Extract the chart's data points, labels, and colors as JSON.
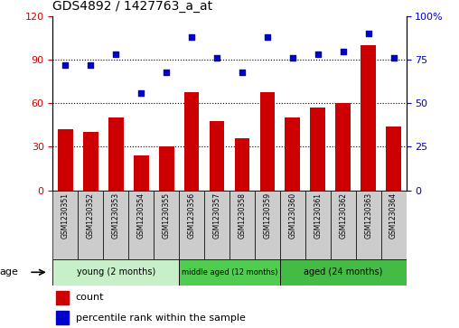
{
  "title": "GDS4892 / 1427763_a_at",
  "samples": [
    "GSM1230351",
    "GSM1230352",
    "GSM1230353",
    "GSM1230354",
    "GSM1230355",
    "GSM1230356",
    "GSM1230357",
    "GSM1230358",
    "GSM1230359",
    "GSM1230360",
    "GSM1230361",
    "GSM1230362",
    "GSM1230363",
    "GSM1230364"
  ],
  "counts": [
    42,
    40,
    50,
    24,
    30,
    68,
    48,
    36,
    68,
    50,
    57,
    60,
    100,
    44
  ],
  "percentiles": [
    72,
    72,
    78,
    56,
    68,
    88,
    76,
    68,
    88,
    76,
    78,
    80,
    90,
    76
  ],
  "ylim_left": [
    0,
    120
  ],
  "ylim_right": [
    0,
    100
  ],
  "yticks_left": [
    0,
    30,
    60,
    90,
    120
  ],
  "ytick_labels_left": [
    "0",
    "30",
    "60",
    "90",
    "120"
  ],
  "yticks_right": [
    0,
    25,
    50,
    75,
    100
  ],
  "ytick_labels_right": [
    "0",
    "25",
    "50",
    "75",
    "100%"
  ],
  "bar_color": "#cc0000",
  "dot_color": "#0000cc",
  "groups": [
    {
      "label": "young (2 months)",
      "start": 0,
      "end": 5
    },
    {
      "label": "middle aged (12 months)",
      "start": 5,
      "end": 9
    },
    {
      "label": "aged (24 months)",
      "start": 9,
      "end": 14
    }
  ],
  "group_colors": [
    "#c8f0c8",
    "#50cc50",
    "#44bb44"
  ],
  "age_label": "age",
  "legend_count": "count",
  "legend_percentile": "percentile rank within the sample",
  "tick_bg_color": "#cccccc",
  "plot_bg": "#ffffff"
}
